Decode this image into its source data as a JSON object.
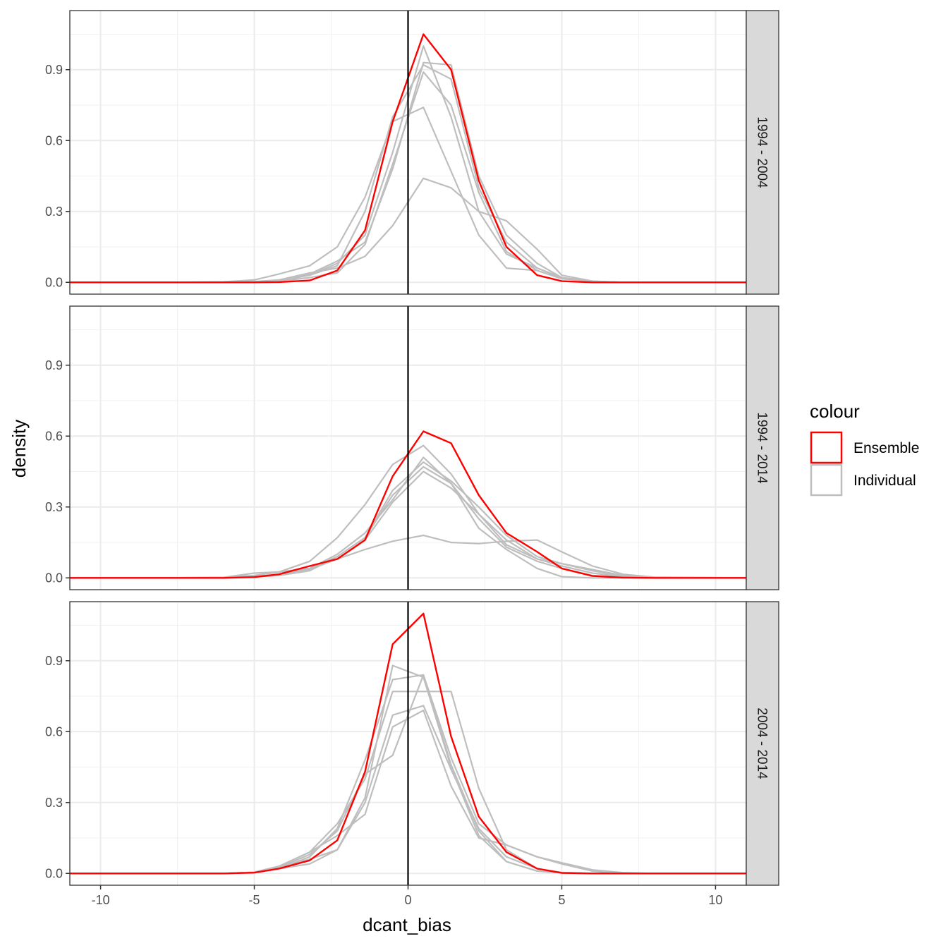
{
  "chart_data": {
    "type": "line",
    "xlabel": "dcant_bias",
    "ylabel": "density",
    "xlim": [
      -11,
      11
    ],
    "ylim": [
      -0.05,
      1.15
    ],
    "x_ticks": [
      -10,
      -5,
      0,
      5,
      10
    ],
    "x_tick_labels": [
      "-10",
      "-5",
      "0",
      "5",
      "10"
    ],
    "y_ticks": [
      0.0,
      0.3,
      0.6,
      0.9
    ],
    "y_tick_labels": [
      "0.0",
      "0.3",
      "0.6",
      "0.9"
    ],
    "vline_x": 0,
    "grid": true,
    "legend": {
      "title": "colour",
      "position": "right",
      "entries": [
        {
          "label": "Ensemble",
          "color": "#ff0000"
        },
        {
          "label": "Individual",
          "color": "#bebebe"
        }
      ]
    },
    "x": [
      -11,
      -8,
      -6,
      -5,
      -4.2,
      -3.2,
      -2.3,
      -1.4,
      -0.5,
      0.5,
      1.4,
      2.3,
      3.2,
      4.2,
      5,
      6,
      7,
      8,
      11
    ],
    "panels": [
      {
        "label": "1994 - 2004",
        "series": [
          {
            "name": "Ensemble",
            "values": [
              0,
              0,
              0,
              0,
              0.001,
              0.008,
              0.05,
              0.22,
              0.68,
              1.05,
              0.9,
              0.43,
              0.15,
              0.03,
              0.005,
              0,
              0,
              0,
              0
            ]
          },
          {
            "values": [
              0,
              0,
              0,
              0.002,
              0.006,
              0.03,
              0.08,
              0.2,
              0.55,
              1.0,
              0.7,
              0.3,
              0.12,
              0.06,
              0.02,
              0.005,
              0,
              0,
              0
            ]
          },
          {
            "values": [
              0,
              0,
              0.002,
              0.01,
              0.035,
              0.07,
              0.15,
              0.36,
              0.68,
              0.74,
              0.47,
              0.2,
              0.06,
              0.05,
              0.015,
              0.003,
              0,
              0,
              0
            ]
          },
          {
            "values": [
              0,
              0,
              0,
              0.003,
              0.01,
              0.04,
              0.06,
              0.11,
              0.24,
              0.44,
              0.4,
              0.3,
              0.26,
              0.14,
              0.03,
              0.005,
              0,
              0,
              0
            ]
          },
          {
            "values": [
              0,
              0,
              0,
              0.002,
              0.008,
              0.035,
              0.09,
              0.17,
              0.48,
              0.93,
              0.92,
              0.45,
              0.2,
              0.08,
              0.02,
              0.004,
              0,
              0,
              0
            ]
          },
          {
            "values": [
              0,
              0,
              0,
              0.002,
              0.008,
              0.03,
              0.07,
              0.3,
              0.7,
              0.92,
              0.86,
              0.4,
              0.17,
              0.06,
              0.02,
              0.004,
              0,
              0,
              0
            ]
          },
          {
            "values": [
              0,
              0,
              0,
              0.001,
              0.005,
              0.02,
              0.04,
              0.16,
              0.5,
              0.89,
              0.75,
              0.38,
              0.13,
              0.05,
              0.015,
              0.003,
              0,
              0,
              0
            ]
          }
        ]
      },
      {
        "label": "1994 - 2014",
        "series": [
          {
            "name": "Ensemble",
            "values": [
              0,
              0,
              0,
              0.003,
              0.015,
              0.05,
              0.08,
              0.16,
              0.43,
              0.62,
              0.57,
              0.35,
              0.19,
              0.11,
              0.04,
              0.008,
              0.001,
              0,
              0
            ]
          },
          {
            "values": [
              0,
              0,
              0.002,
              0.01,
              0.025,
              0.07,
              0.17,
              0.31,
              0.48,
              0.56,
              0.44,
              0.27,
              0.14,
              0.08,
              0.06,
              0.035,
              0.01,
              0.002,
              0
            ]
          },
          {
            "values": [
              0,
              0,
              0.002,
              0.02,
              0.025,
              0.04,
              0.08,
              0.12,
              0.155,
              0.18,
              0.15,
              0.145,
              0.155,
              0.16,
              0.11,
              0.05,
              0.015,
              0.003,
              0
            ]
          },
          {
            "values": [
              0,
              0,
              0,
              0.005,
              0.015,
              0.04,
              0.1,
              0.19,
              0.33,
              0.51,
              0.4,
              0.21,
              0.12,
              0.04,
              0.005,
              0,
              0,
              0,
              0
            ]
          },
          {
            "values": [
              0,
              0,
              0,
              0.005,
              0.015,
              0.04,
              0.09,
              0.17,
              0.37,
              0.49,
              0.41,
              0.3,
              0.18,
              0.09,
              0.06,
              0.03,
              0.008,
              0.001,
              0
            ]
          },
          {
            "values": [
              0,
              0,
              0,
              0.005,
              0.01,
              0.03,
              0.09,
              0.17,
              0.35,
              0.47,
              0.4,
              0.25,
              0.13,
              0.07,
              0.04,
              0.01,
              0.002,
              0,
              0
            ]
          },
          {
            "values": [
              0,
              0,
              0,
              0.004,
              0.012,
              0.035,
              0.08,
              0.16,
              0.32,
              0.45,
              0.38,
              0.27,
              0.16,
              0.08,
              0.05,
              0.02,
              0.005,
              0,
              0
            ]
          }
        ]
      },
      {
        "label": "2004 - 2014",
        "series": [
          {
            "name": "Ensemble",
            "values": [
              0,
              0,
              0,
              0.003,
              0.02,
              0.055,
              0.14,
              0.43,
              0.97,
              1.1,
              0.58,
              0.24,
              0.09,
              0.02,
              0.002,
              0,
              0,
              0,
              0
            ]
          },
          {
            "values": [
              0,
              0,
              0,
              0.005,
              0.025,
              0.06,
              0.1,
              0.32,
              0.88,
              0.83,
              0.45,
              0.16,
              0.05,
              0.01,
              0.002,
              0,
              0,
              0,
              0
            ]
          },
          {
            "values": [
              0,
              0,
              0,
              0.005,
              0.03,
              0.09,
              0.21,
              0.4,
              0.77,
              0.77,
              0.77,
              0.36,
              0.1,
              0.02,
              0.003,
              0,
              0,
              0,
              0
            ]
          },
          {
            "values": [
              0,
              0,
              0,
              0.004,
              0.02,
              0.07,
              0.19,
              0.48,
              0.82,
              0.84,
              0.49,
              0.21,
              0.12,
              0.07,
              0.04,
              0.01,
              0,
              0,
              0
            ]
          },
          {
            "values": [
              0,
              0,
              0,
              0.005,
              0.03,
              0.09,
              0.16,
              0.25,
              0.62,
              0.69,
              0.37,
              0.15,
              0.12,
              0.07,
              0.045,
              0.015,
              0.003,
              0,
              0
            ]
          },
          {
            "values": [
              0,
              0,
              0,
              0.003,
              0.02,
              0.04,
              0.1,
              0.3,
              0.67,
              0.71,
              0.44,
              0.19,
              0.07,
              0.02,
              0.004,
              0,
              0,
              0,
              0
            ]
          },
          {
            "values": [
              0,
              0,
              0,
              0.004,
              0.025,
              0.08,
              0.18,
              0.42,
              0.5,
              0.84,
              0.46,
              0.18,
              0.05,
              0.01,
              0.002,
              0,
              0,
              0,
              0
            ]
          }
        ]
      }
    ]
  }
}
